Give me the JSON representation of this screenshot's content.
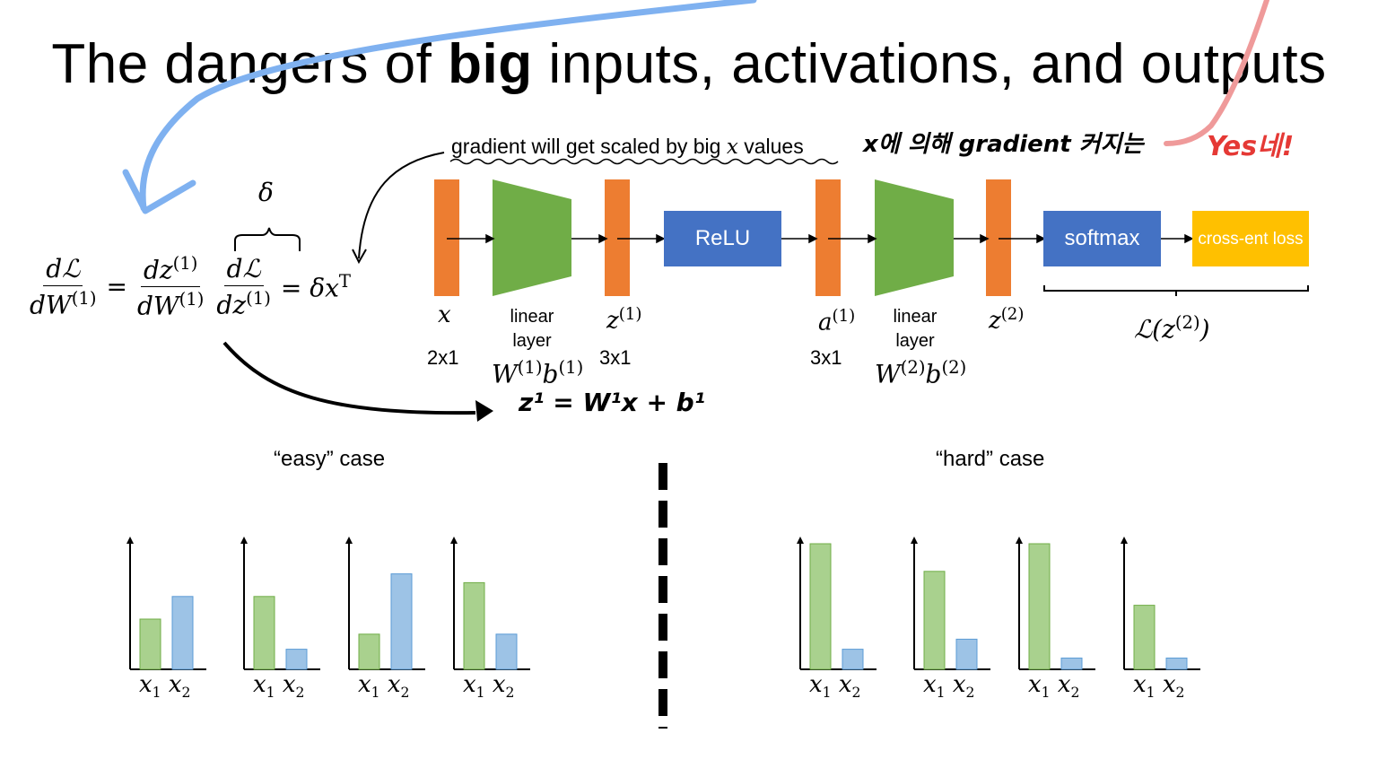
{
  "slide": {
    "title_prefix": "The dangers of ",
    "title_bold": "big",
    "title_suffix": " inputs, activations, and outputs"
  },
  "annotation": {
    "gradient_note_prefix": "gradient will get scaled by big ",
    "gradient_note_var": "x",
    "gradient_note_suffix": " values",
    "korean_handwritten": "x에 의해 gradient 커지는",
    "red_handwritten": "Yes네!",
    "handwritten_eq": "z¹ = W¹x + b¹"
  },
  "equation": {
    "delta": "δ",
    "lhs_num": "dℒ",
    "lhs_den": "dW",
    "m1_num": "dz",
    "m1_den": "dW",
    "m2_num": "dℒ",
    "m2_den": "dz",
    "sup": "(1)",
    "rhs": "= δx",
    "rhs_sup": "T",
    "eq_sign": "="
  },
  "network": {
    "x_label": "x",
    "x_dim": "2x1",
    "linear1": "linear layer",
    "w1": "W",
    "b1": "b",
    "sup1": "(1)",
    "z1_label": "z",
    "z1_dim": "3x1",
    "relu": "ReLU",
    "a1_label": "a",
    "a1_dim": "3x1",
    "linear2": "linear layer",
    "w2": "W",
    "b2": "b",
    "sup2": "(2)",
    "z2_label": "z",
    "softmax": "softmax",
    "ce": "cross-ent loss",
    "loss_label": "ℒ(z",
    "loss_close": ")",
    "colors": {
      "orange": "#ed7d31",
      "green": "#70ad47",
      "blue": "#4472c4",
      "yellow": "#ffc000"
    }
  },
  "cases": {
    "easy_label": "“easy” case",
    "hard_label": "“hard” case",
    "x1": "x",
    "x2": "x",
    "sub1": "1",
    "sub2": "2"
  },
  "chart_data": [
    {
      "type": "bar",
      "categories": [
        "x1",
        "x2"
      ],
      "values": [
        0.4,
        0.58
      ]
    },
    {
      "type": "bar",
      "categories": [
        "x1",
        "x2"
      ],
      "values": [
        0.58,
        0.16
      ]
    },
    {
      "type": "bar",
      "categories": [
        "x1",
        "x2"
      ],
      "values": [
        0.28,
        0.76
      ]
    },
    {
      "type": "bar",
      "categories": [
        "x1",
        "x2"
      ],
      "values": [
        0.69,
        0.28
      ]
    },
    {
      "type": "bar",
      "categories": [
        "x1",
        "x2"
      ],
      "values": [
        1.0,
        0.16
      ]
    },
    {
      "type": "bar",
      "categories": [
        "x1",
        "x2"
      ],
      "values": [
        0.78,
        0.24
      ]
    },
    {
      "type": "bar",
      "categories": [
        "x1",
        "x2"
      ],
      "values": [
        1.0,
        0.09
      ]
    },
    {
      "type": "bar",
      "categories": [
        "x1",
        "x2"
      ],
      "values": [
        0.51,
        0.09
      ]
    }
  ]
}
